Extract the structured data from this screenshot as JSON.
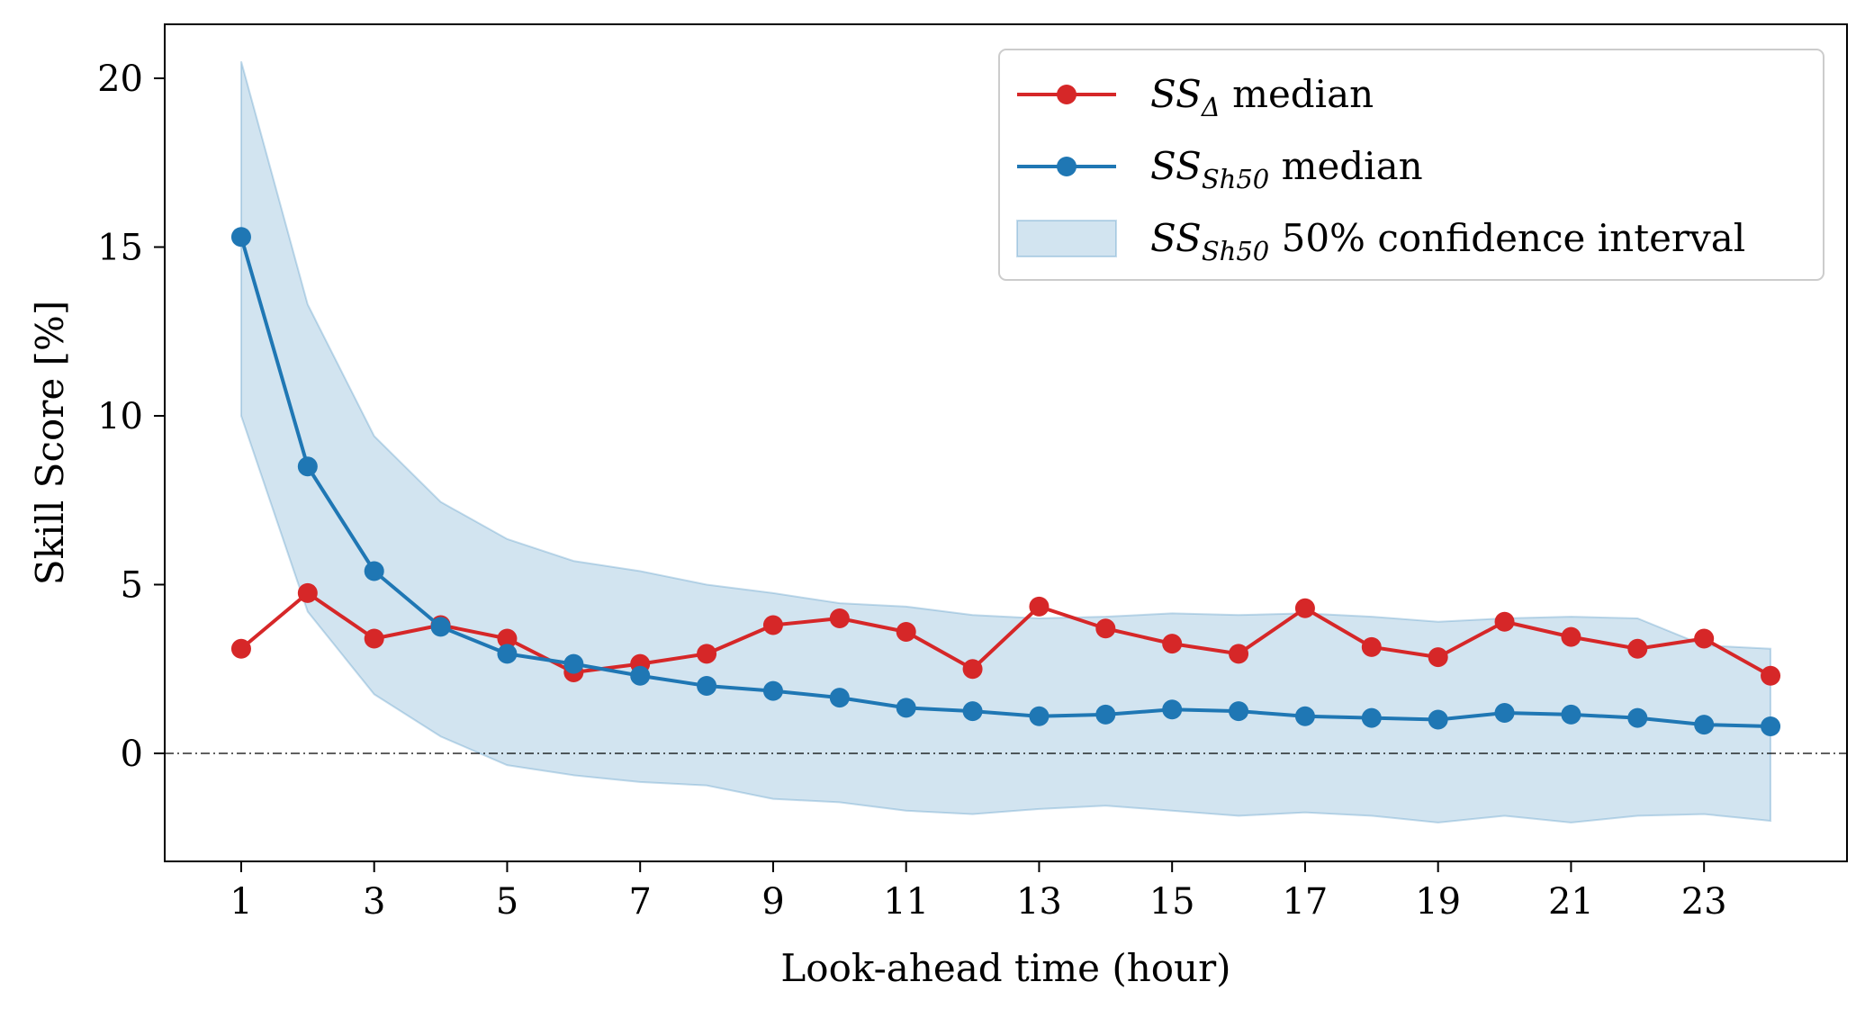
{
  "chart_data": {
    "type": "line",
    "title": "",
    "xlabel": "Look-ahead time (hour)",
    "ylabel": "Skill Score [%]",
    "xlim": [
      -0.15,
      25.15
    ],
    "ylim": [
      -3.2,
      21.6
    ],
    "xticks": [
      1,
      3,
      5,
      7,
      9,
      11,
      13,
      15,
      17,
      19,
      21,
      23
    ],
    "yticks": [
      0,
      5,
      10,
      15,
      20
    ],
    "x": [
      1,
      2,
      3,
      4,
      5,
      6,
      7,
      8,
      9,
      10,
      11,
      12,
      13,
      14,
      15,
      16,
      17,
      18,
      19,
      20,
      21,
      22,
      23,
      24
    ],
    "series": [
      {
        "name": "SS_delta median",
        "legend": {
          "symbol": "SS",
          "subscript": "Δ",
          "suffix": " median"
        },
        "color": "#d62728",
        "values": [
          3.1,
          4.75,
          3.4,
          3.8,
          3.4,
          2.4,
          2.65,
          2.95,
          3.8,
          4.0,
          3.6,
          2.5,
          4.35,
          3.7,
          3.25,
          2.95,
          4.3,
          3.15,
          2.85,
          3.9,
          3.45,
          3.1,
          3.4,
          2.3
        ]
      },
      {
        "name": "SS_Sh50 median",
        "legend": {
          "symbol": "SS",
          "subscript": "Sh50",
          "suffix": " median"
        },
        "color": "#1f77b4",
        "values": [
          15.3,
          8.5,
          5.4,
          3.75,
          2.95,
          2.65,
          2.3,
          2.0,
          1.85,
          1.65,
          1.35,
          1.25,
          1.1,
          1.15,
          1.3,
          1.25,
          1.1,
          1.05,
          1.0,
          1.2,
          1.15,
          1.05,
          0.85,
          0.8
        ]
      }
    ],
    "band": {
      "name": "SS_Sh50 50% confidence interval",
      "legend": {
        "symbol": "SS",
        "subscript": "Sh50",
        "suffix": " 50% confidence interval"
      },
      "color": "#1f77b4",
      "lower": [
        10.0,
        4.2,
        1.75,
        0.5,
        -0.35,
        -0.65,
        -0.85,
        -0.95,
        -1.35,
        -1.45,
        -1.7,
        -1.8,
        -1.65,
        -1.55,
        -1.7,
        -1.85,
        -1.75,
        -1.85,
        -2.05,
        -1.85,
        -2.05,
        -1.85,
        -1.8,
        -2.0
      ],
      "upper": [
        20.5,
        13.3,
        9.4,
        7.45,
        6.35,
        5.7,
        5.4,
        5.0,
        4.75,
        4.45,
        4.35,
        4.1,
        4.0,
        4.05,
        4.15,
        4.1,
        4.15,
        4.05,
        3.9,
        4.0,
        4.05,
        4.0,
        3.2,
        3.1
      ]
    },
    "reference_line": {
      "y": 0,
      "style": "dash-dot",
      "color": "#000000"
    },
    "grid": false,
    "legend_position": "top-right"
  }
}
